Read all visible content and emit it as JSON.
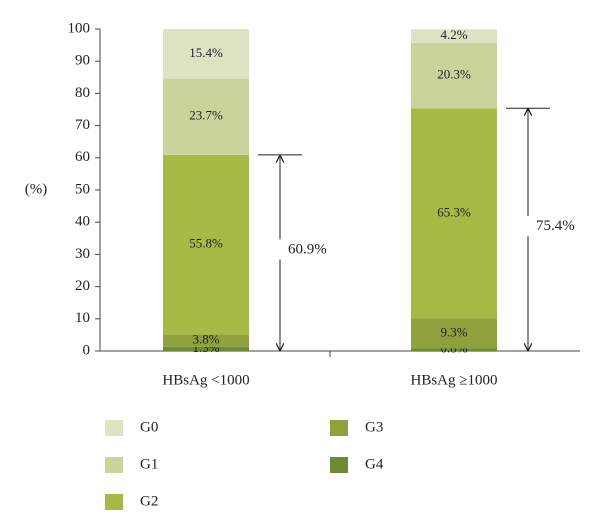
{
  "chart_data": {
    "type": "stacked_bar",
    "y_label": "(%)",
    "categories": [
      "HBsAg <1000",
      "HBsAg ≥1000"
    ],
    "series": [
      {
        "name": "G0",
        "color": "#dde4c3",
        "values": [
          15.4,
          4.2
        ],
        "value_labels": [
          "15.4%",
          "4.2%"
        ]
      },
      {
        "name": "G1",
        "color": "#c9d49c",
        "values": [
          23.7,
          20.3
        ],
        "value_labels": [
          "23.7%",
          "20.3%"
        ]
      },
      {
        "name": "G2",
        "color": "#a5bb46",
        "values": [
          55.8,
          65.3
        ],
        "value_labels": [
          "55.8%",
          "65.3%"
        ]
      },
      {
        "name": "G3",
        "color": "#8da23c",
        "values": [
          3.8,
          9.3
        ],
        "value_labels": [
          "3.8%",
          "9.3%"
        ]
      },
      {
        "name": "G4",
        "color": "#6f8a30",
        "values": [
          1.3,
          0.8
        ],
        "value_labels": [
          "1.3%",
          "0.8%"
        ]
      }
    ],
    "annotations": [
      {
        "value": 60.9,
        "label": "60.9%"
      },
      {
        "value": 75.4,
        "label": "75.4%"
      }
    ],
    "ylim": [
      0,
      100
    ],
    "yticks": [
      0,
      10,
      20,
      30,
      40,
      50,
      60,
      70,
      80,
      90,
      100
    ]
  }
}
